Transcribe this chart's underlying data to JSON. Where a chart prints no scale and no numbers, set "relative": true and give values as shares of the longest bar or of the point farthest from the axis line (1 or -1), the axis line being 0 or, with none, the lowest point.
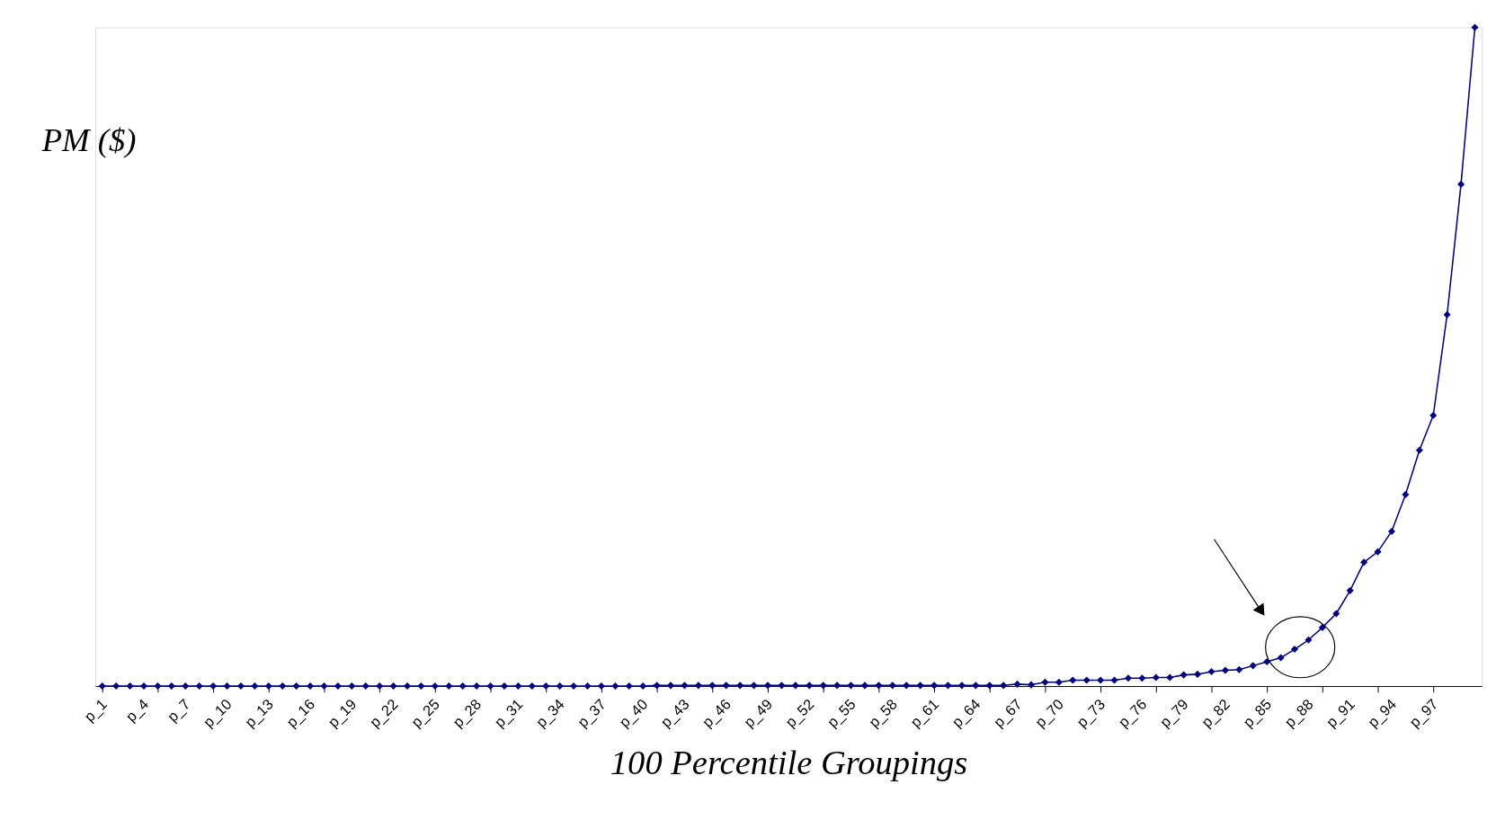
{
  "chart_data": {
    "type": "line",
    "relative": true,
    "xlabel": "100 Percentile Groupings",
    "ylabel": "PM ($)",
    "marker": "diamond",
    "line_style": "solid",
    "grid": false,
    "categories": [
      "p_1",
      null,
      null,
      "p_4",
      null,
      null,
      "p_7",
      null,
      null,
      "p_10",
      null,
      null,
      "p_13",
      null,
      null,
      "p_16",
      null,
      null,
      "p_19",
      null,
      null,
      "p_22",
      null,
      null,
      "p_25",
      null,
      null,
      "p_28",
      null,
      null,
      "p_31",
      null,
      null,
      "p_34",
      null,
      null,
      "p_37",
      null,
      null,
      "p_40",
      null,
      null,
      "p_43",
      null,
      null,
      "p_46",
      null,
      null,
      "p_49",
      null,
      null,
      "p_52",
      null,
      null,
      "p_55",
      null,
      null,
      "p_58",
      null,
      null,
      "p_61",
      null,
      null,
      "p_64",
      null,
      null,
      "p_67",
      null,
      null,
      "p_70",
      null,
      null,
      "p_73",
      null,
      null,
      "p_76",
      null,
      null,
      "p_79",
      null,
      null,
      "p_82",
      null,
      null,
      "p_85",
      null,
      null,
      "p_88",
      null,
      null,
      "p_91",
      null,
      null,
      "p_94",
      null,
      null,
      "p_97",
      null,
      null,
      null
    ],
    "series": [
      {
        "color": "#000080",
        "values": [
          0,
          0,
          0,
          0,
          0,
          0,
          0,
          0,
          0,
          0,
          0,
          0,
          0,
          0,
          0,
          0,
          0,
          0,
          0,
          0,
          0,
          0,
          0,
          0,
          0,
          0,
          0,
          0,
          0,
          0,
          0,
          0,
          0,
          0,
          0,
          0,
          0,
          0,
          0,
          0,
          0.001,
          0.001,
          0.001,
          0.001,
          0.001,
          0.001,
          0.001,
          0.001,
          0.001,
          0.001,
          0.001,
          0.001,
          0.001,
          0.001,
          0.001,
          0.001,
          0.001,
          0.001,
          0.001,
          0.001,
          0.001,
          0.001,
          0.001,
          0.001,
          0.001,
          0.001,
          0.003,
          0.002,
          0.006,
          0.006,
          0.009,
          0.009,
          0.009,
          0.009,
          0.012,
          0.012,
          0.013,
          0.013,
          0.017,
          0.018,
          0.022,
          0.024,
          0.025,
          0.031,
          0.037,
          0.043,
          0.056,
          0.07,
          0.089,
          0.11,
          0.145,
          0.188,
          0.204,
          0.235,
          0.291,
          0.358,
          0.411,
          0.564,
          0.762,
          1.0
        ]
      }
    ]
  }
}
